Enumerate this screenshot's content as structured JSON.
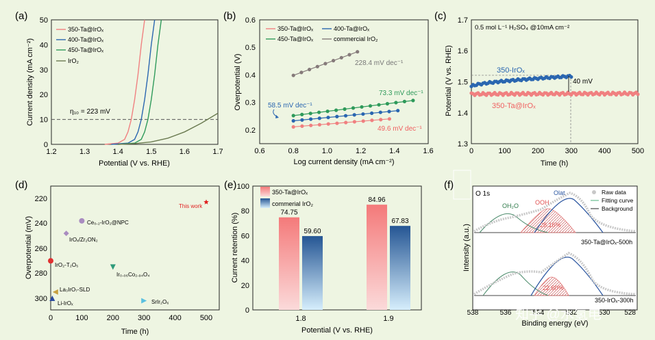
{
  "figure": {
    "watermark": "知乎 @水氢电",
    "background": "#eef5e2"
  },
  "chart_data": [
    {
      "panel": "a",
      "type": "line",
      "panel_label": "(a)",
      "xlabel": "Potential (V vs. RHE)",
      "ylabel": "Current density (mA cm⁻²)",
      "xlim": [
        1.2,
        1.7
      ],
      "ylim": [
        0,
        50
      ],
      "xticks": [
        "1.2",
        "1.3",
        "1.4",
        "1.5",
        "1.6",
        "1.7"
      ],
      "yticks": [
        "0",
        "10",
        "20",
        "30",
        "40",
        "50"
      ],
      "reference_line": 10,
      "annotation": "η₁₀ = 223 mV",
      "series": [
        {
          "name": "350-Ta@IrOₓ",
          "color": "#f08080",
          "x": [
            1.36,
            1.4,
            1.42,
            1.43,
            1.44,
            1.45,
            1.46,
            1.47,
            1.48
          ],
          "y": [
            0,
            0.5,
            2,
            5,
            10,
            18,
            28,
            40,
            50
          ]
        },
        {
          "name": "400-Ta@IrOₓ",
          "color": "#2a66b0",
          "x": [
            1.38,
            1.43,
            1.45,
            1.46,
            1.47,
            1.48,
            1.49,
            1.5,
            1.51
          ],
          "y": [
            0,
            0.5,
            2,
            5,
            10,
            18,
            28,
            40,
            50
          ]
        },
        {
          "name": "450-Ta@IrOₓ",
          "color": "#2e9a5a",
          "x": [
            1.4,
            1.45,
            1.47,
            1.48,
            1.49,
            1.5,
            1.51,
            1.52,
            1.53
          ],
          "y": [
            0,
            0.5,
            2,
            5,
            10,
            18,
            28,
            40,
            50
          ]
        },
        {
          "name": "IrO₂",
          "color": "#6a7a50",
          "x": [
            1.4,
            1.45,
            1.5,
            1.55,
            1.6,
            1.65,
            1.7
          ],
          "y": [
            0,
            0.3,
            1,
            2.5,
            5,
            8.5,
            12.5
          ]
        }
      ]
    },
    {
      "panel": "b",
      "type": "scatter",
      "panel_label": "(b)",
      "xlabel": "Log current density (mA cm⁻²)",
      "ylabel": "Overpotential (V)",
      "xlim": [
        0.6,
        1.6
      ],
      "ylim": [
        0.15,
        0.6
      ],
      "xticks": [
        "0.6",
        "0.8",
        "1.0",
        "1.2",
        "1.4",
        "1.6"
      ],
      "yticks": [
        "0.2",
        "0.3",
        "0.4",
        "0.5",
        "0.6"
      ],
      "series": [
        {
          "name": "350-Ta@IrOₓ",
          "color": "#f08080",
          "x0": 0.8,
          "x1": 1.37,
          "y0": 0.211,
          "y1": 0.24,
          "n": 12,
          "label": "49.6 mV dec⁻¹"
        },
        {
          "name": "400-Ta@IrOₓ",
          "color": "#2a66b0",
          "x0": 0.8,
          "x1": 1.42,
          "y0": 0.233,
          "y1": 0.27,
          "n": 13,
          "label": "58.5 mV dec⁻¹"
        },
        {
          "name": "450-Ta@IrOₓ",
          "color": "#2e9a5a",
          "x0": 0.8,
          "x1": 1.51,
          "y0": 0.252,
          "y1": 0.307,
          "n": 15,
          "label": "73.3 mV dec⁻¹"
        },
        {
          "name": "commercial IrO₂",
          "color": "#857a7a",
          "x0": 0.8,
          "x1": 1.18,
          "y0": 0.398,
          "y1": 0.484,
          "n": 9,
          "label": "228.4 mV dec⁻¹"
        }
      ]
    },
    {
      "panel": "c",
      "type": "scatter",
      "panel_label": "(c)",
      "title": "0.5 mol L⁻¹ H₂SO₄ @10mA cm⁻²",
      "xlabel": "Time (h)",
      "ylabel": "Potential (V vs. RHE)",
      "xlim": [
        0,
        500
      ],
      "ylim": [
        1.3,
        1.7
      ],
      "xticks": [
        "0",
        "100",
        "200",
        "300",
        "400",
        "500"
      ],
      "yticks": [
        "1.3",
        "1.4",
        "1.5",
        "1.6",
        "1.7"
      ],
      "annotation": "40 mV",
      "series": [
        {
          "name": "350-IrOₓ",
          "color": "#2a66b0",
          "x_end": 300,
          "start": 1.485,
          "end": 1.518
        },
        {
          "name": "350-Ta@IrOₓ",
          "color": "#f08080",
          "x_end": 500,
          "start": 1.46,
          "end": 1.462
        }
      ]
    },
    {
      "panel": "d",
      "type": "scatter",
      "panel_label": "(d)",
      "xlabel": "Time (h)",
      "ylabel": "Overpotential (mV)",
      "xlim": [
        0,
        500
      ],
      "ylim": [
        300,
        215
      ],
      "xticks": [
        "0",
        "100",
        "200",
        "300",
        "400",
        "500"
      ],
      "yticks": [
        "220",
        "240",
        "260",
        "280",
        "300"
      ],
      "points": [
        {
          "label": "This work",
          "x": 500,
          "y": 223,
          "color": "#e02020",
          "shape": "star"
        },
        {
          "label": "Ce₀.₂-IrO₂@NPC",
          "x": 100,
          "y": 238,
          "color": "#a98cc0",
          "shape": "circle"
        },
        {
          "label": "IrOₓ/Zr₂ON₂",
          "x": 50,
          "y": 248,
          "color": "#a98cc0",
          "shape": "diamond"
        },
        {
          "label": "IrO₂-T₂O₅",
          "x": 0,
          "y": 270,
          "color": "#e03030",
          "shape": "circle"
        },
        {
          "label": "Ir₀.₀₆Co₂.₉₄O₄",
          "x": 200,
          "y": 275,
          "color": "#2e9a7a",
          "shape": "tri-down"
        },
        {
          "label": "La₃IrO₇-SLD",
          "x": 15,
          "y": 295,
          "color": "#c8a040",
          "shape": "tri-left"
        },
        {
          "label": "Li-IrOₓ",
          "x": 5,
          "y": 300,
          "color": "#2a4aa0",
          "shape": "tri-up"
        },
        {
          "label": "SrIr₂O₆",
          "x": 300,
          "y": 302,
          "color": "#5ac0e0",
          "shape": "tri-right"
        }
      ]
    },
    {
      "panel": "e",
      "type": "bar",
      "panel_label": "(e)",
      "xlabel": "Potential (V vs. RHE)",
      "ylabel": "Current retention (%)",
      "ylim": [
        0,
        100
      ],
      "categories": [
        "1.8",
        "1.9"
      ],
      "yticks": [
        "0",
        "20",
        "40",
        "60",
        "80",
        "100"
      ],
      "series": [
        {
          "name": "350-Ta@IrOₓ",
          "color": "#f07070",
          "values": [
            74.75,
            84.96
          ],
          "labels": [
            "74.75",
            "84.96"
          ]
        },
        {
          "name": "commerial IrO₂",
          "color": "#2a5a98",
          "values": [
            59.6,
            67.83
          ],
          "labels": [
            "59.60",
            "67.83"
          ]
        }
      ]
    },
    {
      "panel": "f",
      "type": "line",
      "panel_label": "(f)",
      "spectrum": "O 1s",
      "xlabel": "Binding energy (eV)",
      "ylabel": "Intensity (a.u.)",
      "xlim": [
        538,
        528
      ],
      "xticks": [
        "538",
        "536",
        "534",
        "532",
        "530",
        "528"
      ],
      "legend": [
        "Raw data",
        "Fitting curve",
        "Background"
      ],
      "peak_labels": {
        "oh2o": "OH₂O",
        "ooh": "OOH",
        "olat": "Olat"
      },
      "samples": [
        {
          "name": "350-Ta@IrOₓ-500h",
          "percent": "28.16%"
        },
        {
          "name": "350-IrOₓ-300h",
          "percent": "22.60%"
        }
      ]
    }
  ]
}
